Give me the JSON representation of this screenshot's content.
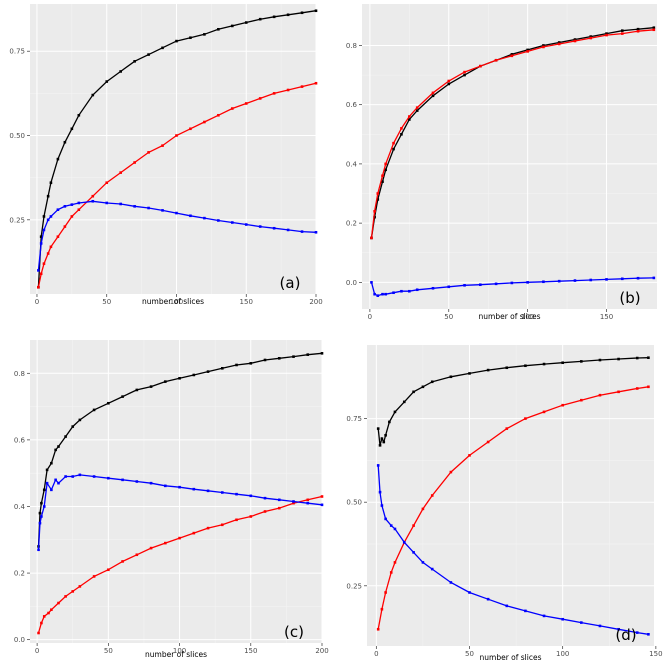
{
  "colors": {
    "black": "#000000",
    "red": "#ff0000",
    "blue": "#0000ff"
  },
  "chart_data": [
    {
      "type": "line",
      "panel_label": "(a)",
      "xlabel": "number of slices",
      "ylabel": "",
      "xlim": [
        -5,
        200
      ],
      "ylim": [
        0.03,
        0.89
      ],
      "x_ticks": [
        0,
        50,
        100,
        150,
        200
      ],
      "x_tick_labels": [
        "0",
        "50",
        "100",
        "150",
        "200"
      ],
      "y_ticks": [
        0.25,
        0.5,
        0.75
      ],
      "y_tick_labels": [
        "0.25",
        "0.50",
        "0.75"
      ],
      "grid": true,
      "series": [
        {
          "color": "#000000",
          "x": [
            1,
            3,
            5,
            8,
            10,
            15,
            20,
            25,
            30,
            40,
            50,
            60,
            70,
            80,
            90,
            100,
            110,
            120,
            130,
            140,
            150,
            160,
            170,
            180,
            190,
            200
          ],
          "values": [
            0.05,
            0.2,
            0.26,
            0.32,
            0.36,
            0.43,
            0.48,
            0.52,
            0.56,
            0.62,
            0.66,
            0.69,
            0.72,
            0.74,
            0.76,
            0.78,
            0.79,
            0.8,
            0.815,
            0.825,
            0.835,
            0.845,
            0.852,
            0.858,
            0.864,
            0.87
          ]
        },
        {
          "color": "#ff0000",
          "x": [
            1,
            3,
            5,
            8,
            10,
            15,
            20,
            25,
            30,
            40,
            50,
            60,
            70,
            80,
            90,
            100,
            110,
            120,
            130,
            140,
            150,
            160,
            170,
            180,
            190,
            200
          ],
          "values": [
            0.05,
            0.09,
            0.12,
            0.15,
            0.17,
            0.2,
            0.23,
            0.26,
            0.28,
            0.32,
            0.36,
            0.39,
            0.42,
            0.45,
            0.47,
            0.5,
            0.52,
            0.54,
            0.56,
            0.58,
            0.595,
            0.61,
            0.625,
            0.635,
            0.645,
            0.655
          ]
        },
        {
          "color": "#0000ff",
          "x": [
            1,
            3,
            5,
            8,
            10,
            15,
            20,
            25,
            30,
            40,
            50,
            60,
            70,
            80,
            90,
            100,
            110,
            120,
            130,
            140,
            150,
            160,
            170,
            180,
            190,
            200
          ],
          "values": [
            0.1,
            0.18,
            0.22,
            0.25,
            0.26,
            0.28,
            0.29,
            0.295,
            0.3,
            0.305,
            0.3,
            0.297,
            0.29,
            0.285,
            0.278,
            0.27,
            0.262,
            0.255,
            0.248,
            0.242,
            0.236,
            0.23,
            0.225,
            0.22,
            0.215,
            0.213
          ]
        }
      ]
    },
    {
      "type": "line",
      "panel_label": "(b)",
      "xlabel": "number of slices",
      "ylabel": "",
      "xlim": [
        -5,
        182
      ],
      "ylim": [
        -0.09,
        0.94
      ],
      "x_ticks": [
        0,
        50,
        100,
        150
      ],
      "x_tick_labels": [
        "0",
        "50",
        "100",
        "150"
      ],
      "y_ticks": [
        0.0,
        0.2,
        0.4,
        0.6,
        0.8
      ],
      "y_tick_labels": [
        "0.0",
        "0.2",
        "0.4",
        "0.6",
        "0.8"
      ],
      "grid": true,
      "series": [
        {
          "color": "#000000",
          "x": [
            1,
            3,
            5,
            8,
            10,
            15,
            20,
            25,
            30,
            40,
            50,
            60,
            70,
            80,
            90,
            100,
            110,
            120,
            130,
            140,
            150,
            160,
            170,
            180
          ],
          "values": [
            0.15,
            0.22,
            0.28,
            0.34,
            0.38,
            0.45,
            0.5,
            0.55,
            0.58,
            0.63,
            0.67,
            0.7,
            0.73,
            0.75,
            0.77,
            0.785,
            0.8,
            0.81,
            0.82,
            0.83,
            0.84,
            0.85,
            0.855,
            0.86
          ]
        },
        {
          "color": "#ff0000",
          "x": [
            1,
            3,
            5,
            8,
            10,
            15,
            20,
            25,
            30,
            40,
            50,
            60,
            70,
            80,
            90,
            100,
            110,
            120,
            130,
            140,
            150,
            160,
            170,
            180
          ],
          "values": [
            0.15,
            0.24,
            0.3,
            0.36,
            0.4,
            0.47,
            0.52,
            0.56,
            0.59,
            0.64,
            0.68,
            0.71,
            0.73,
            0.75,
            0.765,
            0.78,
            0.795,
            0.805,
            0.815,
            0.825,
            0.835,
            0.84,
            0.848,
            0.853
          ]
        },
        {
          "color": "#0000ff",
          "x": [
            1,
            3,
            5,
            8,
            10,
            15,
            20,
            25,
            30,
            40,
            50,
            60,
            70,
            80,
            90,
            100,
            110,
            120,
            130,
            140,
            150,
            160,
            170,
            180
          ],
          "values": [
            0.0,
            -0.04,
            -0.045,
            -0.04,
            -0.04,
            -0.035,
            -0.03,
            -0.03,
            -0.025,
            -0.02,
            -0.015,
            -0.01,
            -0.008,
            -0.005,
            -0.002,
            0.0,
            0.002,
            0.004,
            0.006,
            0.008,
            0.01,
            0.012,
            0.014,
            0.015
          ]
        }
      ]
    },
    {
      "type": "line",
      "panel_label": "(c)",
      "xlabel": "number of slices",
      "ylabel": "",
      "xlim": [
        -5,
        200
      ],
      "ylim": [
        -0.01,
        0.9
      ],
      "x_ticks": [
        0,
        50,
        100,
        150,
        200
      ],
      "x_tick_labels": [
        "0",
        "50",
        "100",
        "150",
        "200"
      ],
      "y_ticks": [
        0.0,
        0.2,
        0.4,
        0.6,
        0.8
      ],
      "y_tick_labels": [
        "0.0",
        "0.2",
        "0.4",
        "0.6",
        "0.8"
      ],
      "grid": true,
      "series": [
        {
          "color": "#000000",
          "x": [
            1,
            2,
            3,
            5,
            7,
            10,
            13,
            15,
            20,
            25,
            30,
            40,
            50,
            60,
            70,
            80,
            90,
            100,
            110,
            120,
            130,
            140,
            150,
            160,
            170,
            180,
            190,
            200
          ],
          "values": [
            0.28,
            0.38,
            0.41,
            0.45,
            0.51,
            0.53,
            0.57,
            0.58,
            0.61,
            0.64,
            0.66,
            0.69,
            0.71,
            0.73,
            0.75,
            0.76,
            0.775,
            0.785,
            0.795,
            0.805,
            0.815,
            0.825,
            0.83,
            0.84,
            0.845,
            0.85,
            0.856,
            0.86
          ]
        },
        {
          "color": "#ff0000",
          "x": [
            1,
            3,
            5,
            8,
            10,
            15,
            20,
            25,
            30,
            40,
            50,
            60,
            70,
            80,
            90,
            100,
            110,
            120,
            130,
            140,
            150,
            160,
            170,
            180,
            190,
            200
          ],
          "values": [
            0.02,
            0.05,
            0.07,
            0.08,
            0.09,
            0.11,
            0.13,
            0.145,
            0.16,
            0.19,
            0.21,
            0.235,
            0.255,
            0.275,
            0.29,
            0.305,
            0.32,
            0.335,
            0.345,
            0.36,
            0.37,
            0.385,
            0.395,
            0.41,
            0.42,
            0.43
          ]
        },
        {
          "color": "#0000ff",
          "x": [
            1,
            2,
            3,
            5,
            7,
            10,
            13,
            15,
            20,
            25,
            30,
            40,
            50,
            60,
            70,
            80,
            90,
            100,
            110,
            120,
            130,
            140,
            150,
            160,
            170,
            180,
            190,
            200
          ],
          "values": [
            0.27,
            0.35,
            0.37,
            0.4,
            0.47,
            0.45,
            0.48,
            0.47,
            0.49,
            0.49,
            0.495,
            0.49,
            0.485,
            0.48,
            0.475,
            0.47,
            0.462,
            0.458,
            0.452,
            0.447,
            0.442,
            0.437,
            0.432,
            0.425,
            0.42,
            0.415,
            0.41,
            0.405
          ]
        }
      ]
    },
    {
      "type": "line",
      "panel_label": "(d)",
      "xlabel": "number of slices",
      "ylabel": "",
      "xlim": [
        -5,
        149
      ],
      "ylim": [
        0.07,
        0.97
      ],
      "x_ticks": [
        0,
        50,
        100,
        150
      ],
      "x_tick_labels": [
        "0",
        "50",
        "100",
        "150"
      ],
      "y_ticks": [
        0.25,
        0.5,
        0.75
      ],
      "y_tick_labels": [
        "0.25",
        "0.50",
        "0.75"
      ],
      "grid": true,
      "series": [
        {
          "color": "#000000",
          "x": [
            1,
            2,
            3,
            4,
            5,
            7,
            10,
            15,
            20,
            25,
            30,
            40,
            50,
            60,
            70,
            80,
            90,
            100,
            110,
            120,
            130,
            140,
            146
          ],
          "values": [
            0.72,
            0.67,
            0.69,
            0.68,
            0.7,
            0.74,
            0.77,
            0.8,
            0.83,
            0.845,
            0.86,
            0.875,
            0.885,
            0.895,
            0.902,
            0.908,
            0.913,
            0.917,
            0.921,
            0.925,
            0.928,
            0.931,
            0.932
          ]
        },
        {
          "color": "#ff0000",
          "x": [
            1,
            3,
            5,
            8,
            10,
            15,
            20,
            25,
            30,
            40,
            50,
            60,
            70,
            80,
            90,
            100,
            110,
            120,
            130,
            140,
            146
          ],
          "values": [
            0.12,
            0.18,
            0.23,
            0.29,
            0.32,
            0.38,
            0.43,
            0.48,
            0.52,
            0.59,
            0.64,
            0.68,
            0.72,
            0.75,
            0.77,
            0.79,
            0.805,
            0.82,
            0.83,
            0.84,
            0.845
          ]
        },
        {
          "color": "#0000ff",
          "x": [
            1,
            2,
            3,
            5,
            8,
            10,
            15,
            20,
            25,
            30,
            40,
            50,
            60,
            70,
            80,
            90,
            100,
            110,
            120,
            130,
            140,
            146
          ],
          "values": [
            0.61,
            0.53,
            0.49,
            0.45,
            0.43,
            0.42,
            0.38,
            0.35,
            0.32,
            0.3,
            0.26,
            0.23,
            0.21,
            0.19,
            0.175,
            0.16,
            0.15,
            0.14,
            0.13,
            0.12,
            0.11,
            0.105
          ]
        }
      ]
    }
  ]
}
